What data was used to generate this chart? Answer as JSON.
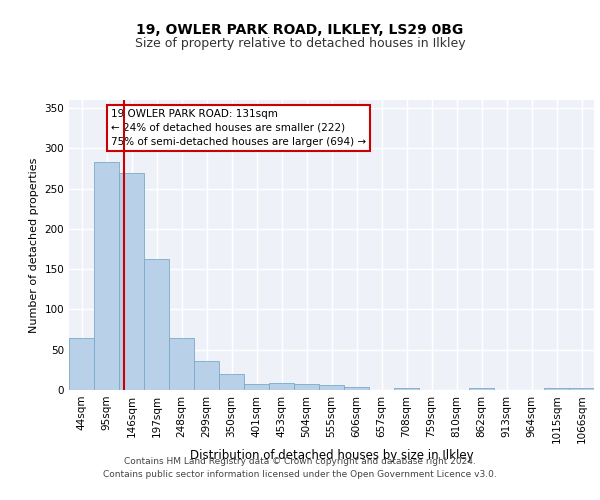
{
  "title1": "19, OWLER PARK ROAD, ILKLEY, LS29 0BG",
  "title2": "Size of property relative to detached houses in Ilkley",
  "xlabel": "Distribution of detached houses by size in Ilkley",
  "ylabel": "Number of detached properties",
  "categories": [
    "44sqm",
    "95sqm",
    "146sqm",
    "197sqm",
    "248sqm",
    "299sqm",
    "350sqm",
    "401sqm",
    "453sqm",
    "504sqm",
    "555sqm",
    "606sqm",
    "657sqm",
    "708sqm",
    "759sqm",
    "810sqm",
    "862sqm",
    "913sqm",
    "964sqm",
    "1015sqm",
    "1066sqm"
  ],
  "values": [
    65,
    283,
    270,
    163,
    65,
    36,
    20,
    8,
    9,
    8,
    6,
    4,
    0,
    3,
    0,
    0,
    3,
    0,
    0,
    3,
    3
  ],
  "bar_color": "#b8d0e8",
  "bar_edge_color": "#7aaac8",
  "vline_color": "#cc0000",
  "annotation_text": "19 OWLER PARK ROAD: 131sqm\n← 24% of detached houses are smaller (222)\n75% of semi-detached houses are larger (694) →",
  "annotation_box_color": "#ffffff",
  "annotation_box_edge_color": "#cc0000",
  "ylim": [
    0,
    360
  ],
  "yticks": [
    0,
    50,
    100,
    150,
    200,
    250,
    300,
    350
  ],
  "footer1": "Contains HM Land Registry data © Crown copyright and database right 2024.",
  "footer2": "Contains public sector information licensed under the Open Government Licence v3.0.",
  "bg_color": "#eef2f8",
  "grid_color": "#ffffff",
  "title1_fontsize": 10,
  "title2_fontsize": 9,
  "xlabel_fontsize": 8.5,
  "ylabel_fontsize": 8,
  "tick_fontsize": 7.5,
  "annotation_fontsize": 7.5,
  "footer_fontsize": 6.5
}
